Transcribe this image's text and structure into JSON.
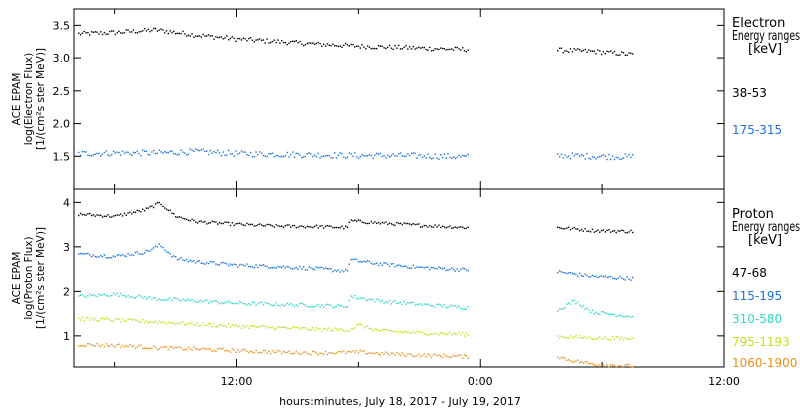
{
  "figure": {
    "x_axis_label": "hours:minutes, July 18, 2017 - July 19, 2017",
    "x_ticks": [
      "12:00",
      "0:00",
      "12:00"
    ]
  },
  "panels": {
    "electron": {
      "ylabel": [
        "ACE EPAM",
        "log(Electron Flux)",
        "[1/(cm²s ster MeV)]"
      ],
      "legend_title": [
        "Electron",
        "Energy ranges",
        "[keV]"
      ],
      "y_ticks": [
        "1.5",
        "2.0",
        "2.5",
        "3.0",
        "3.5"
      ]
    },
    "proton": {
      "ylabel": [
        "ACE EPAM",
        "log(Proton Flux)",
        "[1/(cm²s ster MeV)]"
      ],
      "legend_title": [
        "Proton",
        "Energy ranges",
        "[keV]"
      ],
      "y_ticks": [
        "1",
        "2",
        "3",
        "4"
      ]
    }
  },
  "chart_data": [
    {
      "type": "scatter",
      "panel": "electron",
      "x_unit": "hours since 2017-07-18 00:00 UTC",
      "xlim": [
        4,
        36
      ],
      "ylim": [
        1.0,
        3.75
      ],
      "gap": [
        23.4,
        27.7
      ],
      "series": [
        {
          "name": "38-53",
          "color": "#000000",
          "noise": 0.035,
          "points": [
            [
              4.2,
              3.38
            ],
            [
              6,
              3.4
            ],
            [
              8,
              3.44
            ],
            [
              10,
              3.36
            ],
            [
              12,
              3.3
            ],
            [
              14,
              3.26
            ],
            [
              16,
              3.22
            ],
            [
              18,
              3.19
            ],
            [
              20,
              3.17
            ],
            [
              22,
              3.15
            ],
            [
              23.2,
              3.14
            ],
            [
              27.8,
              3.13
            ],
            [
              29.5,
              3.11
            ],
            [
              31.5,
              3.06
            ]
          ]
        },
        {
          "name": "175-315",
          "color": "#1a73d9",
          "noise": 0.045,
          "points": [
            [
              4.2,
              1.55
            ],
            [
              6,
              1.56
            ],
            [
              8,
              1.56
            ],
            [
              10,
              1.58
            ],
            [
              12,
              1.55
            ],
            [
              14,
              1.54
            ],
            [
              16,
              1.53
            ],
            [
              18,
              1.52
            ],
            [
              20,
              1.52
            ],
            [
              22,
              1.51
            ],
            [
              23.2,
              1.5
            ],
            [
              27.8,
              1.52
            ],
            [
              29.5,
              1.51
            ],
            [
              31.5,
              1.5
            ]
          ]
        }
      ]
    },
    {
      "type": "scatter",
      "panel": "proton",
      "x_unit": "hours since 2017-07-18 00:00 UTC",
      "xlim": [
        4,
        36
      ],
      "ylim": [
        0.3,
        4.3
      ],
      "gap": [
        23.4,
        27.7
      ],
      "series": [
        {
          "name": "47-68",
          "color": "#000000",
          "noise": 0.035,
          "points": [
            [
              4.2,
              3.75
            ],
            [
              6,
              3.7
            ],
            [
              7.5,
              3.85
            ],
            [
              8.2,
              4.0
            ],
            [
              9,
              3.7
            ],
            [
              10,
              3.58
            ],
            [
              12,
              3.52
            ],
            [
              14,
              3.48
            ],
            [
              16,
              3.47
            ],
            [
              17.4,
              3.45
            ],
            [
              17.6,
              3.6
            ],
            [
              19,
              3.55
            ],
            [
              21,
              3.5
            ],
            [
              23.2,
              3.45
            ],
            [
              27.8,
              3.45
            ],
            [
              29.5,
              3.38
            ],
            [
              31.5,
              3.36
            ]
          ]
        },
        {
          "name": "115-195",
          "color": "#1a73d9",
          "noise": 0.04,
          "points": [
            [
              4.2,
              2.85
            ],
            [
              6,
              2.8
            ],
            [
              7.5,
              2.9
            ],
            [
              8.2,
              3.05
            ],
            [
              9,
              2.75
            ],
            [
              10,
              2.68
            ],
            [
              12,
              2.6
            ],
            [
              14,
              2.57
            ],
            [
              16,
              2.52
            ],
            [
              17.4,
              2.47
            ],
            [
              17.6,
              2.72
            ],
            [
              19,
              2.63
            ],
            [
              21,
              2.55
            ],
            [
              23.2,
              2.5
            ],
            [
              27.8,
              2.45
            ],
            [
              29.5,
              2.35
            ],
            [
              31.5,
              2.3
            ]
          ]
        },
        {
          "name": "310-580",
          "color": "#2fd6c6",
          "noise": 0.04,
          "points": [
            [
              4.2,
              1.9
            ],
            [
              6,
              1.95
            ],
            [
              8,
              1.85
            ],
            [
              10,
              1.8
            ],
            [
              12,
              1.75
            ],
            [
              14,
              1.72
            ],
            [
              16,
              1.7
            ],
            [
              17.4,
              1.67
            ],
            [
              17.6,
              1.9
            ],
            [
              19,
              1.8
            ],
            [
              21,
              1.72
            ],
            [
              23.2,
              1.65
            ],
            [
              27.8,
              1.6
            ],
            [
              28.6,
              1.8
            ],
            [
              29.5,
              1.55
            ],
            [
              31.5,
              1.45
            ]
          ]
        },
        {
          "name": "795-1193",
          "color": "#c4e01a",
          "noise": 0.04,
          "points": [
            [
              4.2,
              1.4
            ],
            [
              6,
              1.37
            ],
            [
              8,
              1.33
            ],
            [
              10,
              1.28
            ],
            [
              12,
              1.23
            ],
            [
              14,
              1.2
            ],
            [
              16,
              1.16
            ],
            [
              17.5,
              1.15
            ],
            [
              18,
              1.26
            ],
            [
              19,
              1.13
            ],
            [
              21,
              1.08
            ],
            [
              23.2,
              1.05
            ],
            [
              27.8,
              1.0
            ],
            [
              29.5,
              0.97
            ],
            [
              31.5,
              0.95
            ]
          ]
        },
        {
          "name": "1060-1900",
          "color": "#e8901a",
          "noise": 0.04,
          "points": [
            [
              4.2,
              0.82
            ],
            [
              6,
              0.8
            ],
            [
              8,
              0.75
            ],
            [
              10,
              0.72
            ],
            [
              12,
              0.68
            ],
            [
              14,
              0.65
            ],
            [
              16,
              0.63
            ],
            [
              18,
              0.65
            ],
            [
              19,
              0.62
            ],
            [
              21,
              0.58
            ],
            [
              23.2,
              0.55
            ],
            [
              27.8,
              0.55
            ],
            [
              28.3,
              0.48
            ],
            [
              29.5,
              0.38
            ],
            [
              31.5,
              0.33
            ]
          ]
        }
      ]
    }
  ]
}
